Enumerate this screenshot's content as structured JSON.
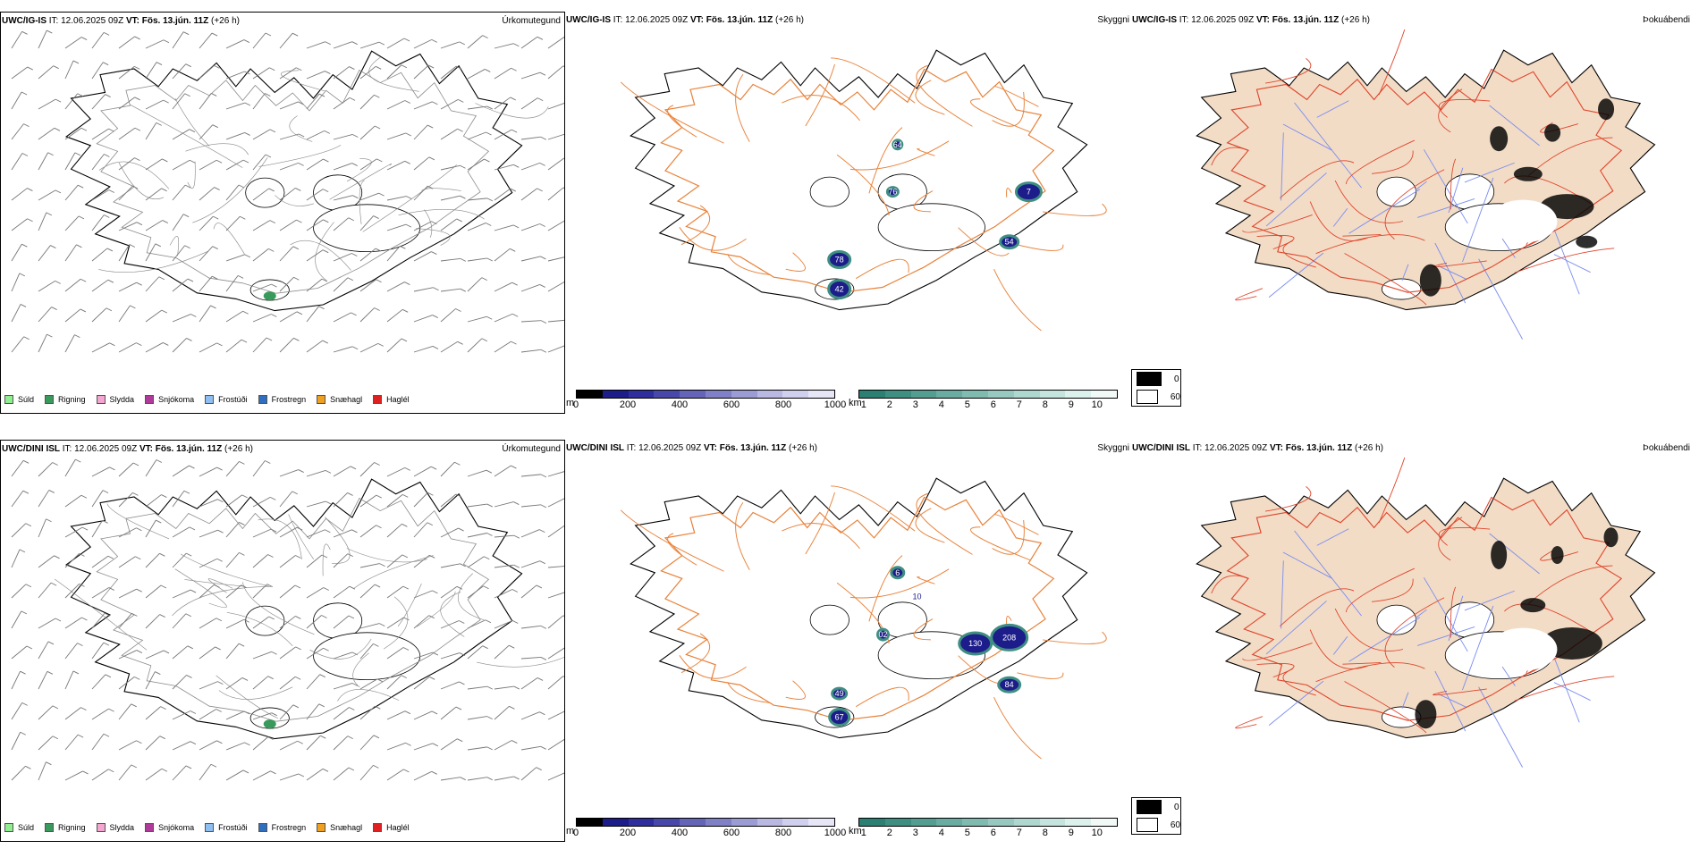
{
  "rows": [
    {
      "model": "UWC/IG-IS",
      "it_label": "IT:",
      "it_value": "12.06.2025 09Z",
      "vt_label": "VT:",
      "vt_value": "Fös. 13.jún. 11Z",
      "lead": "(+26 h)",
      "precip_title": "Úrkomutegund",
      "cloud_title": "Skyggni",
      "cover_title": "Þokuábendi",
      "ceiling_labels": [
        "78",
        "42",
        "7",
        "54",
        "64",
        "76"
      ],
      "visibility_labels": []
    },
    {
      "model": "UWC/DINI ISL",
      "it_label": "IT:",
      "it_value": "12.06.2025 09Z",
      "vt_label": "VT:",
      "vt_value": "Fös. 13.jún. 11Z",
      "lead": "(+26 h)",
      "precip_title": "Úrkomutegund",
      "cloud_title": "Skyggni",
      "cover_title": "Þokuábendi",
      "ceiling_labels": [
        "67",
        "49",
        "130",
        "208",
        "84",
        "6",
        "02",
        "10"
      ],
      "visibility_labels": []
    }
  ],
  "precip_legend": [
    {
      "label": "Súld",
      "color": "#90ee90"
    },
    {
      "label": "Rigning",
      "color": "#3a9a5c"
    },
    {
      "label": "Slydda",
      "color": "#f4a6d0"
    },
    {
      "label": "Snjókoma",
      "color": "#b03a9a"
    },
    {
      "label": "Frostúði",
      "color": "#8fbff0"
    },
    {
      "label": "Frostregn",
      "color": "#2f6fbf"
    },
    {
      "label": "Snæhagl",
      "color": "#f0a020"
    },
    {
      "label": "Haglél",
      "color": "#e02020"
    }
  ],
  "ceiling_colorbar": {
    "unit": "m",
    "ticks": [
      "0",
      "200",
      "400",
      "600",
      "800",
      "1000"
    ],
    "colors": [
      "#000000",
      "#1c1c8a",
      "#2e2e9e",
      "#4848aa",
      "#6464b8",
      "#8080c6",
      "#9c9cd4",
      "#b8b8e2",
      "#d0d0ee",
      "#e6e6f7"
    ]
  },
  "visibility_colorbar": {
    "unit": "km",
    "ticks": [
      "1",
      "2",
      "3",
      "4",
      "5",
      "6",
      "7",
      "8",
      "9",
      "10"
    ],
    "colors": [
      "#2b8073",
      "#3f8e82",
      "#549d91",
      "#6aaca1",
      "#80bbb0",
      "#97c9c0",
      "#aed7cf",
      "#c5e4de",
      "#dcf0ec",
      "#f2faf8"
    ]
  },
  "fog_legend": [
    {
      "label": "0",
      "color": "#000000"
    },
    {
      "label": "60",
      "color": "#ffffff"
    }
  ],
  "colors": {
    "roads": "#e8823a",
    "roads_red": "#e0442a",
    "rivers": "#7a8cf0",
    "land_tan": "#f2dcc6",
    "coast": "#000000"
  }
}
